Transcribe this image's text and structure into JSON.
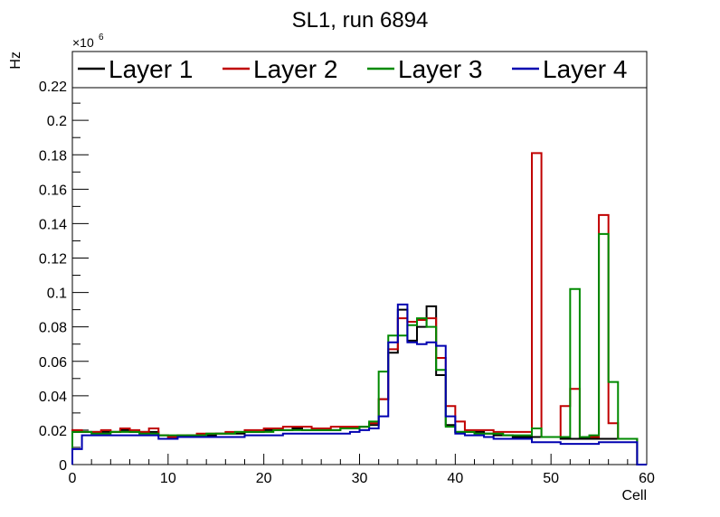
{
  "chart_data": {
    "type": "step-histogram",
    "title": "SL1, run 6894",
    "xlabel": "Cell",
    "ylabel": "Hz",
    "y_exponent_label": "×10",
    "y_exponent_power": "6",
    "xlim": [
      0,
      60
    ],
    "ylim": [
      0,
      0.24
    ],
    "x_ticks": [
      0,
      10,
      20,
      30,
      40,
      50,
      60
    ],
    "x_tick_labels": [
      "0",
      "10",
      "20",
      "30",
      "40",
      "50",
      "60"
    ],
    "y_ticks": [
      0,
      0.02,
      0.04,
      0.06,
      0.08,
      0.1,
      0.12,
      0.14,
      0.16,
      0.18,
      0.2,
      0.22
    ],
    "y_tick_labels": [
      "0",
      "0.02",
      "0.04",
      "0.06",
      "0.08",
      "0.1",
      "0.12",
      "0.14",
      "0.16",
      "0.18",
      "0.2",
      "0.22"
    ],
    "legend_position": "top",
    "grid": false,
    "bin_width": 1,
    "series": [
      {
        "name": "Layer 1",
        "color": "#000000",
        "values": [
          0.019,
          0.019,
          0.019,
          0.019,
          0.019,
          0.02,
          0.019,
          0.019,
          0.019,
          0.017,
          0.016,
          0.016,
          0.017,
          0.017,
          0.017,
          0.018,
          0.018,
          0.018,
          0.019,
          0.019,
          0.02,
          0.02,
          0.02,
          0.021,
          0.02,
          0.02,
          0.02,
          0.02,
          0.021,
          0.021,
          0.022,
          0.023,
          0.038,
          0.065,
          0.09,
          0.072,
          0.08,
          0.092,
          0.052,
          0.023,
          0.019,
          0.019,
          0.019,
          0.018,
          0.017,
          0.017,
          0.016,
          0.016,
          0.016,
          0.016,
          0.016,
          0.015,
          0.015,
          0.015,
          0.015,
          0.015,
          0.015,
          0.015,
          0.015,
          0.0
        ]
      },
      {
        "name": "Layer 2",
        "color": "#c00000",
        "values": [
          0.02,
          0.019,
          0.019,
          0.02,
          0.019,
          0.021,
          0.02,
          0.019,
          0.021,
          0.017,
          0.016,
          0.017,
          0.017,
          0.018,
          0.018,
          0.018,
          0.019,
          0.019,
          0.02,
          0.02,
          0.021,
          0.021,
          0.022,
          0.022,
          0.022,
          0.021,
          0.021,
          0.022,
          0.022,
          0.022,
          0.022,
          0.024,
          0.038,
          0.067,
          0.085,
          0.083,
          0.084,
          0.085,
          0.062,
          0.034,
          0.025,
          0.02,
          0.02,
          0.02,
          0.019,
          0.019,
          0.019,
          0.019,
          0.181,
          0.016,
          0.016,
          0.034,
          0.044,
          0.016,
          0.016,
          0.145,
          0.024,
          0.015,
          0.015,
          0.0
        ]
      },
      {
        "name": "Layer 3",
        "color": "#008a00",
        "values": [
          0.019,
          0.019,
          0.018,
          0.018,
          0.019,
          0.019,
          0.019,
          0.018,
          0.018,
          0.017,
          0.017,
          0.017,
          0.017,
          0.017,
          0.018,
          0.018,
          0.018,
          0.019,
          0.019,
          0.019,
          0.019,
          0.02,
          0.02,
          0.02,
          0.02,
          0.02,
          0.02,
          0.02,
          0.021,
          0.021,
          0.022,
          0.025,
          0.054,
          0.075,
          0.075,
          0.081,
          0.085,
          0.08,
          0.055,
          0.022,
          0.019,
          0.019,
          0.018,
          0.018,
          0.018,
          0.017,
          0.017,
          0.017,
          0.021,
          0.016,
          0.016,
          0.016,
          0.102,
          0.016,
          0.017,
          0.134,
          0.048,
          0.015,
          0.015,
          0.0
        ]
      },
      {
        "name": "Layer 4",
        "color": "#0000b0",
        "values": [
          0.009,
          0.017,
          0.017,
          0.017,
          0.017,
          0.017,
          0.017,
          0.017,
          0.017,
          0.015,
          0.015,
          0.016,
          0.016,
          0.016,
          0.016,
          0.016,
          0.016,
          0.016,
          0.017,
          0.017,
          0.017,
          0.017,
          0.018,
          0.018,
          0.018,
          0.018,
          0.018,
          0.018,
          0.018,
          0.019,
          0.02,
          0.021,
          0.028,
          0.071,
          0.093,
          0.071,
          0.07,
          0.071,
          0.069,
          0.028,
          0.018,
          0.017,
          0.017,
          0.016,
          0.015,
          0.015,
          0.015,
          0.015,
          0.013,
          0.013,
          0.013,
          0.012,
          0.012,
          0.012,
          0.012,
          0.013,
          0.013,
          0.013,
          0.013,
          0.0
        ]
      }
    ]
  }
}
